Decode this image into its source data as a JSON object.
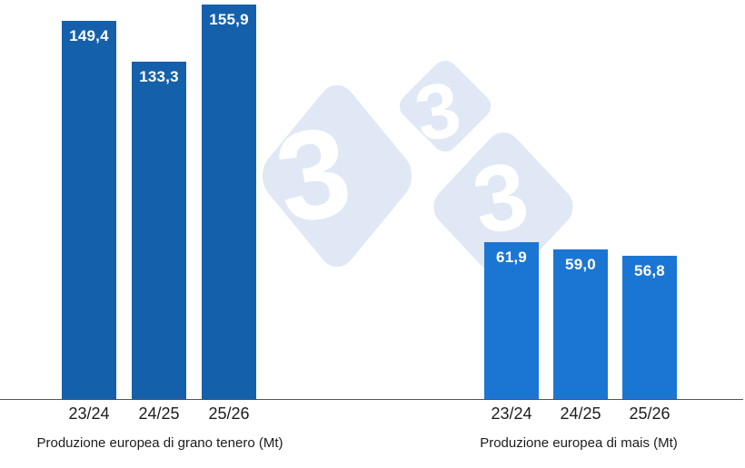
{
  "watermark": {
    "digits": [
      "3",
      "3",
      "3"
    ],
    "diamond_color": "#dfe8f4",
    "digit_color": "#ffffff"
  },
  "chart_data": {
    "type": "bar",
    "grid": false,
    "legend": false,
    "ylim": [
      0,
      160
    ],
    "axis_line_color": "#555555",
    "text_color": "#1c1c1c",
    "value_label_color": "#ffffff",
    "groups": [
      {
        "title": "Produzione europea di grano tenero (Mt)",
        "categories": [
          "23/24",
          "24/25",
          "25/26"
        ],
        "values": [
          149.4,
          133.3,
          155.9
        ],
        "labels": [
          "149,4",
          "133,3",
          "155,9"
        ],
        "bar_color": "#1560ab"
      },
      {
        "title": "Produzione europea di mais (Mt)",
        "categories": [
          "23/24",
          "24/25",
          "25/26"
        ],
        "values": [
          61.9,
          59.0,
          56.8
        ],
        "labels": [
          "61,9",
          "59,0",
          "56,8"
        ],
        "bar_color": "#1b76d3"
      }
    ]
  }
}
